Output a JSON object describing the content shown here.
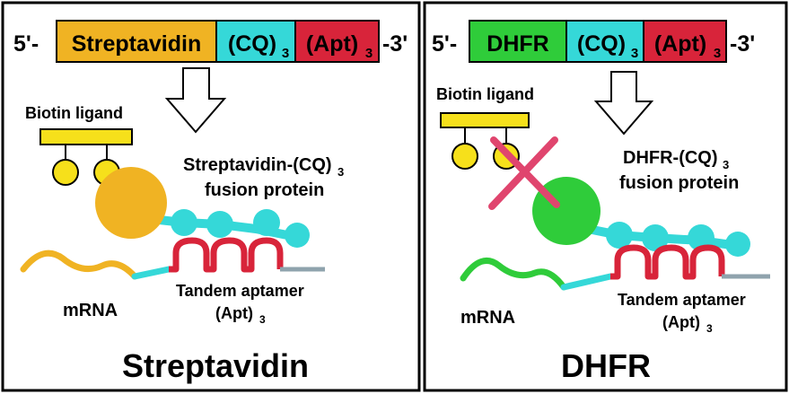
{
  "colors": {
    "border": "#000000",
    "streptavidin": "#f0b323",
    "cq": "#35d8d8",
    "apt": "#d8243a",
    "dhfr": "#2fcc3a",
    "biotin": "#f6e01b",
    "tail": "#8fa3ad",
    "cross": "#e0456e"
  },
  "left": {
    "construct": {
      "prefix": "5'-",
      "gene": "Streptavidin",
      "cq": "(CQ)",
      "cq_sub": "3",
      "apt": "(Apt)",
      "apt_sub": "3",
      "suffix": "-3'"
    },
    "biotin_label": "Biotin ligand",
    "fusion_line1": "Streptavidin-(CQ)",
    "fusion_line1_sub": "3",
    "fusion_line2": "fusion protein",
    "tandem_line1": "Tandem aptamer",
    "tandem_line2": "(Apt)",
    "tandem_sub": "3",
    "mrna": "mRNA",
    "title": "Streptavidin"
  },
  "right": {
    "construct": {
      "prefix": "5'-",
      "gene": "DHFR",
      "cq": "(CQ)",
      "cq_sub": "3",
      "apt": "(Apt)",
      "apt_sub": "3",
      "suffix": "-3'"
    },
    "biotin_label": "Biotin ligand",
    "fusion_line1": "DHFR-(CQ)",
    "fusion_line1_sub": "3",
    "fusion_line2": "fusion protein",
    "tandem_line1": "Tandem aptamer",
    "tandem_line2": "(Apt)",
    "tandem_sub": "3",
    "mrna": "mRNA",
    "title": "DHFR"
  }
}
